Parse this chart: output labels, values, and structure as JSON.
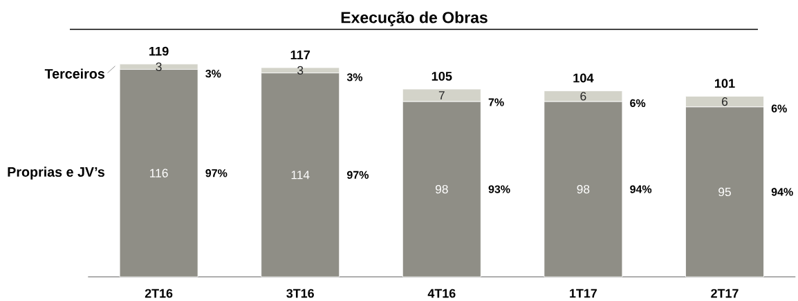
{
  "chart_data": {
    "type": "bar",
    "title": "Execução de Obras",
    "categories": [
      "2T16",
      "3T16",
      "4T16",
      "1T17",
      "2T17"
    ],
    "stacked": true,
    "data_labels": true,
    "series": [
      {
        "name": "Proprias e JV’s",
        "color": "#8f8e86",
        "values": [
          116,
          114,
          98,
          98,
          95
        ]
      },
      {
        "name": "Terceiros",
        "color": "#d3d3c9",
        "values": [
          3,
          3,
          7,
          6,
          6
        ]
      }
    ],
    "totals": [
      "119",
      "117",
      "105",
      "104",
      "101"
    ],
    "annotations": [
      "3%",
      "97%",
      "3%",
      "97%",
      "7%",
      "93%",
      "6%",
      "94%",
      "6%",
      "94%"
    ]
  }
}
